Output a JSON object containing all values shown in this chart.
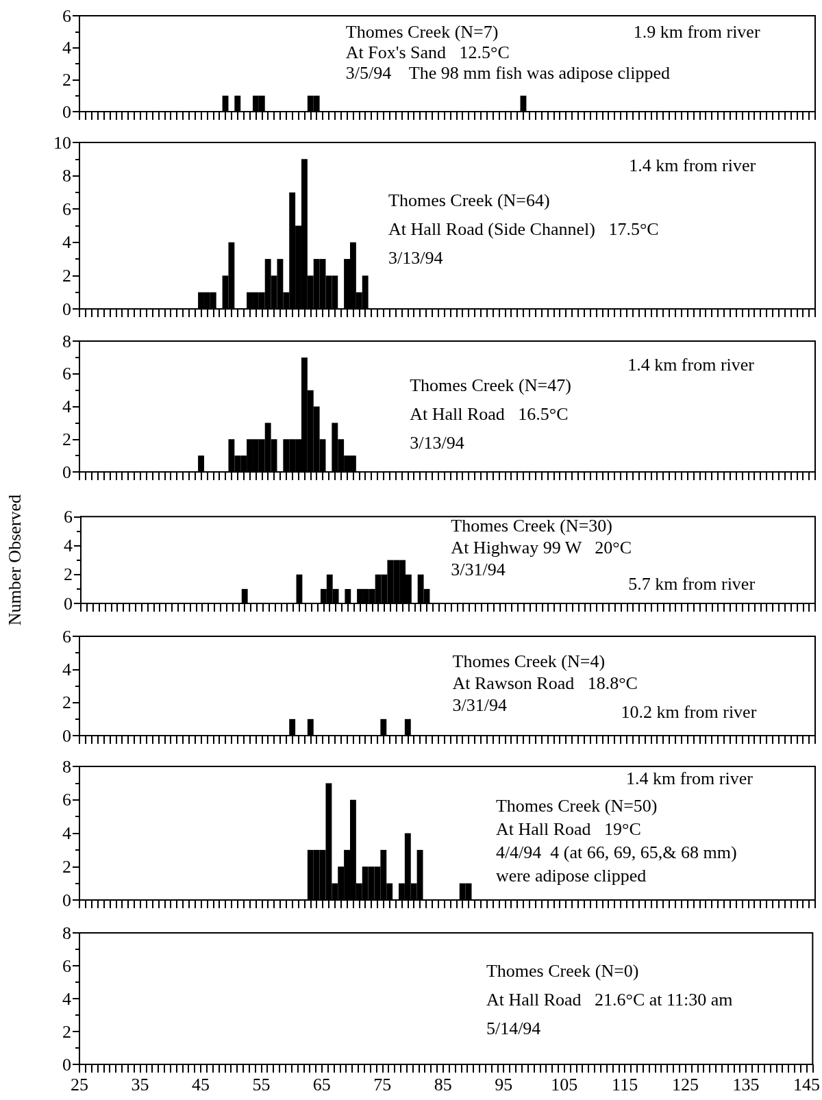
{
  "chart_data": [
    {
      "type": "histogram",
      "color": "#000000",
      "xlim": [
        25,
        146
      ],
      "xticks": [
        25,
        35,
        45,
        55,
        65,
        75,
        85,
        95,
        105,
        115,
        125,
        135,
        145
      ],
      "ylim": [
        0,
        6
      ],
      "yticks": [
        0,
        2,
        4,
        6
      ],
      "tick_labels": "y",
      "bins": [
        48.5,
        49.5,
        50.5,
        51.5,
        52.5,
        53.5,
        54.5,
        55.5,
        56.5,
        57.5,
        58.5,
        59.5,
        60.5,
        61.5,
        62.5,
        63.5,
        64.5,
        65.5,
        66.5,
        67.5,
        68.5,
        69.5,
        70.5,
        71.5,
        72.5,
        73.5,
        74.5,
        75.5,
        76.5,
        77.5,
        78.5,
        79.5,
        80.5,
        81.5,
        82.5,
        83.5,
        84.5,
        85.5,
        86.5,
        87.5,
        88.5,
        89.5,
        90.5,
        91.5,
        92.5,
        93.5,
        94.5,
        95.5,
        96.5,
        97.5,
        98.5
      ],
      "values": [
        1,
        0,
        1,
        0,
        0,
        1,
        1,
        0,
        0,
        0,
        0,
        0,
        0,
        0,
        1,
        1,
        0,
        0,
        0,
        0,
        0,
        0,
        0,
        0,
        0,
        0,
        0,
        0,
        0,
        0,
        0,
        0,
        0,
        0,
        0,
        0,
        0,
        0,
        0,
        0,
        0,
        0,
        0,
        0,
        0,
        0,
        0,
        0,
        0,
        1
      ],
      "annotations": [
        "Thomes Creek (N=7)\nAt Fox's Sand   12.5°C\n3/5/94    The 98 mm fish was adipose clipped",
        "1.9 km from river"
      ]
    },
    {
      "type": "histogram",
      "color": "#000000",
      "xlim": [
        25,
        146
      ],
      "xticks": [
        25,
        35,
        45,
        55,
        65,
        75,
        85,
        95,
        105,
        115,
        125,
        135,
        145
      ],
      "ylim": [
        0,
        10
      ],
      "yticks": [
        0,
        2,
        4,
        6,
        8,
        10
      ],
      "tick_labels": "y",
      "bins": [
        44.5,
        45.5,
        46.5,
        47.5,
        48.5,
        49.5,
        50.5,
        51.5,
        52.5,
        53.5,
        54.5,
        55.5,
        56.5,
        57.5,
        58.5,
        59.5,
        60.5,
        61.5,
        62.5,
        63.5,
        64.5,
        65.5,
        66.5,
        67.5,
        68.5,
        69.5,
        70.5,
        71.5,
        72.5
      ],
      "values": [
        1,
        1,
        1,
        0,
        2,
        4,
        0,
        0,
        1,
        1,
        1,
        3,
        2,
        3,
        1,
        7,
        5,
        9,
        2,
        3,
        3,
        2,
        2,
        0,
        3,
        4,
        1,
        2
      ],
      "annotations": [
        "1.4 km from river",
        "Thomes Creek (N=64)\nAt Hall Road (Side Channel)   17.5°C\n3/13/94"
      ]
    },
    {
      "type": "histogram",
      "color": "#000000",
      "xlim": [
        25,
        146
      ],
      "xticks": [
        25,
        35,
        45,
        55,
        65,
        75,
        85,
        95,
        105,
        115,
        125,
        135,
        145
      ],
      "ylim": [
        0,
        8
      ],
      "yticks": [
        0,
        2,
        4,
        6,
        8
      ],
      "tick_labels": "y",
      "bins": [
        44.5,
        45.5,
        46.5,
        47.5,
        48.5,
        49.5,
        50.5,
        51.5,
        52.5,
        53.5,
        54.5,
        55.5,
        56.5,
        57.5,
        58.5,
        59.5,
        60.5,
        61.5,
        62.5,
        63.5,
        64.5,
        65.5,
        66.5,
        67.5,
        68.5,
        69.5,
        70.5
      ],
      "values": [
        1,
        0,
        0,
        0,
        0,
        2,
        1,
        1,
        2,
        2,
        2,
        3,
        2,
        0,
        2,
        2,
        2,
        7,
        5,
        4,
        2,
        0,
        3,
        2,
        1,
        1
      ],
      "annotations": [
        "1.4 km from river",
        "Thomes Creek (N=47)\nAt Hall Road   16.5°C\n3/13/94"
      ]
    },
    {
      "type": "histogram",
      "color": "#000000",
      "xlim": [
        25,
        146
      ],
      "xticks": [
        25,
        35,
        45,
        55,
        65,
        75,
        85,
        95,
        105,
        115,
        125,
        135,
        145
      ],
      "ylim": [
        0,
        6
      ],
      "yticks": [
        0,
        2,
        4,
        6
      ],
      "tick_labels": "y",
      "ylabel": "Number Observed",
      "bins": [
        51.5,
        52.5,
        53.5,
        54.5,
        55.5,
        56.5,
        57.5,
        58.5,
        59.5,
        60.5,
        61.5,
        62.5,
        63.5,
        64.5,
        65.5,
        66.5,
        67.5,
        68.5,
        69.5,
        70.5,
        71.5,
        72.5,
        73.5,
        74.5,
        75.5,
        76.5,
        77.5,
        78.5,
        79.5,
        80.5,
        81.5,
        82.5
      ],
      "values": [
        1,
        0,
        0,
        0,
        0,
        0,
        0,
        0,
        0,
        2,
        0,
        0,
        0,
        1,
        2,
        1,
        0,
        1,
        0,
        1,
        1,
        1,
        2,
        2,
        3,
        3,
        3,
        2,
        0,
        2,
        1
      ],
      "annotations": [
        "Thomes Creek (N=30)\nAt Highway 99 W   20°C\n3/31/94",
        "5.7 km from river"
      ]
    },
    {
      "type": "histogram",
      "color": "#000000",
      "xlim": [
        25,
        146
      ],
      "xticks": [
        25,
        35,
        45,
        55,
        65,
        75,
        85,
        95,
        105,
        115,
        125,
        135,
        145
      ],
      "ylim": [
        0,
        6
      ],
      "yticks": [
        0,
        2,
        4,
        6
      ],
      "tick_labels": "y",
      "bins": [
        59.5,
        60.5,
        61.5,
        62.5,
        63.5,
        64.5,
        65.5,
        66.5,
        67.5,
        68.5,
        69.5,
        70.5,
        71.5,
        72.5,
        73.5,
        74.5,
        75.5,
        76.5,
        77.5,
        78.5,
        79.5
      ],
      "values": [
        1,
        0,
        0,
        1,
        0,
        0,
        0,
        0,
        0,
        0,
        0,
        0,
        0,
        0,
        0,
        1,
        0,
        0,
        0,
        1
      ],
      "annotations": [
        "Thomes Creek (N=4)\nAt Rawson Road   18.8°C\n3/31/94",
        "10.2 km from river"
      ]
    },
    {
      "type": "histogram",
      "color": "#000000",
      "xlim": [
        25,
        146
      ],
      "xticks": [
        25,
        35,
        45,
        55,
        65,
        75,
        85,
        95,
        105,
        115,
        125,
        135,
        145
      ],
      "ylim": [
        0,
        8
      ],
      "yticks": [
        0,
        2,
        4,
        6,
        8
      ],
      "tick_labels": "y",
      "bins": [
        62.5,
        63.5,
        64.5,
        65.5,
        66.5,
        67.5,
        68.5,
        69.5,
        70.5,
        71.5,
        72.5,
        73.5,
        74.5,
        75.5,
        76.5,
        77.5,
        78.5,
        79.5,
        80.5,
        81.5,
        82.5,
        83.5,
        84.5,
        85.5,
        86.5,
        87.5,
        88.5,
        89.5
      ],
      "values": [
        3,
        3,
        3,
        7,
        1,
        2,
        3,
        6,
        1,
        2,
        2,
        2,
        3,
        1,
        0,
        1,
        4,
        1,
        3,
        0,
        0,
        0,
        0,
        0,
        0,
        1,
        1
      ],
      "annotations": [
        "1.4 km from river",
        "Thomes Creek (N=50)\nAt Hall Road   19°C\n4/4/94  4 (at 66, 69, 65,& 68 mm)\nwere adipose clipped"
      ]
    },
    {
      "type": "histogram",
      "xlim": [
        25,
        146
      ],
      "xticks": [
        25,
        35,
        45,
        55,
        65,
        75,
        85,
        95,
        105,
        115,
        125,
        135,
        145
      ],
      "ylim": [
        0,
        8
      ],
      "yticks": [
        0,
        2,
        4,
        6,
        8
      ],
      "annotations": [
        "Thomes Creek (N=0)\nAt Hall Road   21.6°C at 11:30 am\n5/14/94"
      ]
    }
  ]
}
